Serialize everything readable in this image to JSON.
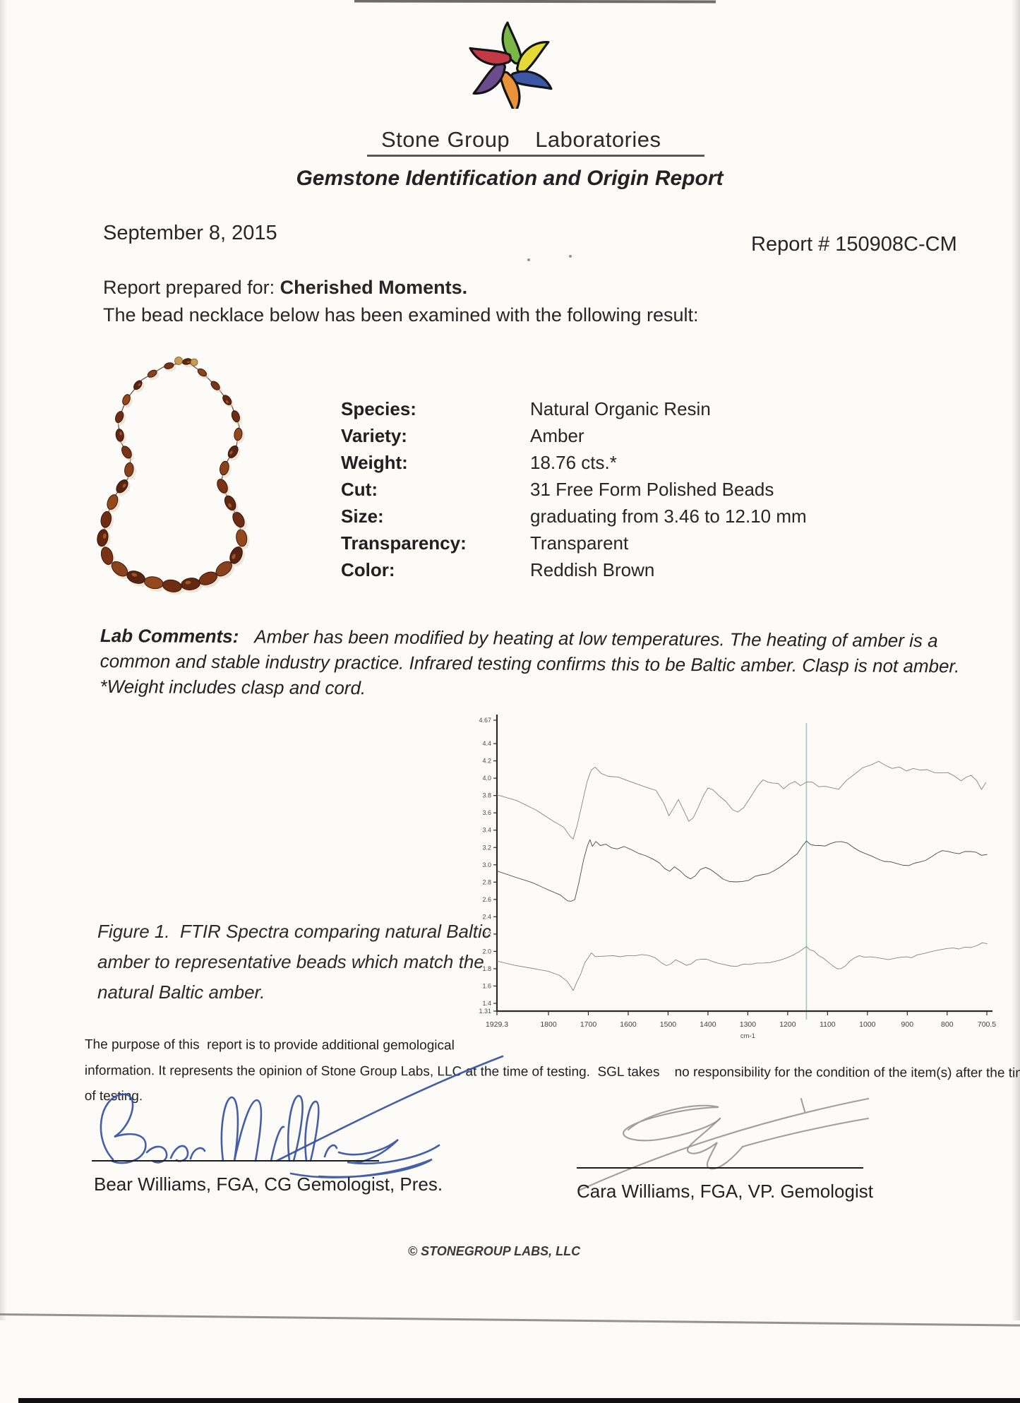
{
  "header": {
    "brand": {
      "word1": "Stone",
      "word2": "Group",
      "word3": "Laboratories"
    },
    "title": "Gemstone Identification and Origin Report"
  },
  "meta": {
    "date": "September 8, 2015",
    "report_number": "Report # 150908C-CM"
  },
  "intro": {
    "prepared_label": "Report prepared for: ",
    "client": "Cherished Moments.",
    "line2": "The bead necklace below has been examined with the following result:"
  },
  "specimen": {
    "fields": [
      {
        "label": "Species:",
        "value": "Natural Organic Resin"
      },
      {
        "label": "Variety:",
        "value": "Amber"
      },
      {
        "label": "Weight:",
        "value": "18.76 cts.*"
      },
      {
        "label": "Cut:",
        "value": "31 Free Form Polished Beads"
      },
      {
        "label": "Size:",
        "value": "graduating from 3.46 to 12.10 mm"
      },
      {
        "label": "Transparency:",
        "value": "Transparent"
      },
      {
        "label": "Color:",
        "value": "Reddish Brown"
      }
    ],
    "bead_colors": [
      "#63260f",
      "#7a3315",
      "#8a421d",
      "#5a2210",
      "#93491c",
      "#6f2c12"
    ],
    "clasp_color": "#c89b52"
  },
  "lab_comments": {
    "label": "Lab Comments:",
    "line1": "Amber has been modified by heating at low temperatures. The heating of amber is a",
    "line2": "common and stable industry practice. Infrared testing confirms this to be Baltic amber. Clasp is not amber.",
    "line3": "*Weight includes clasp and cord."
  },
  "figure": {
    "caption_lines": [
      "Figure 1.  FTIR Spectra comparing natural Baltic",
      "amber to representative beads which match the",
      "natural Baltic amber."
    ]
  },
  "chart_data": {
    "type": "line",
    "title": "",
    "xlabel": "cm-1",
    "ylabel": "",
    "x_range": [
      1929.3,
      700.5
    ],
    "y_range": [
      1.31,
      4.67
    ],
    "x_ticks": [
      "1929.3",
      "1800",
      "1700",
      "1600",
      "1500",
      "1400",
      "1300",
      "1200",
      "1100",
      "1000",
      "900",
      "800",
      "700.5"
    ],
    "y_ticks": [
      "4.67",
      "4.4",
      "4.2",
      "4.0",
      "3.8",
      "3.6",
      "3.4",
      "3.2",
      "3.0",
      "2.8",
      "2.6",
      "2.4",
      "2.2",
      "2.0",
      "1.8",
      "1.6",
      "1.4",
      "1.31"
    ],
    "grid": false,
    "legend": null,
    "reference_line_x": 1153,
    "reference_line_color": "#9fbdb8",
    "axis_color": "#2b2b2b",
    "series": [
      {
        "name": "trace-top",
        "color": "#85857f",
        "points": [
          [
            1929,
            3.8
          ],
          [
            1880,
            3.73
          ],
          [
            1830,
            3.63
          ],
          [
            1790,
            3.52
          ],
          [
            1762,
            3.42
          ],
          [
            1746,
            3.33
          ],
          [
            1738,
            3.31
          ],
          [
            1728,
            3.45
          ],
          [
            1715,
            3.72
          ],
          [
            1703,
            3.96
          ],
          [
            1693,
            4.09
          ],
          [
            1683,
            4.14
          ],
          [
            1668,
            4.07
          ],
          [
            1650,
            4.03
          ],
          [
            1625,
            4.0
          ],
          [
            1600,
            3.97
          ],
          [
            1575,
            3.93
          ],
          [
            1550,
            3.9
          ],
          [
            1530,
            3.86
          ],
          [
            1510,
            3.7
          ],
          [
            1498,
            3.58
          ],
          [
            1486,
            3.66
          ],
          [
            1474,
            3.74
          ],
          [
            1460,
            3.62
          ],
          [
            1448,
            3.5
          ],
          [
            1437,
            3.53
          ],
          [
            1424,
            3.67
          ],
          [
            1412,
            3.8
          ],
          [
            1400,
            3.88
          ],
          [
            1388,
            3.86
          ],
          [
            1372,
            3.8
          ],
          [
            1355,
            3.72
          ],
          [
            1338,
            3.63
          ],
          [
            1325,
            3.61
          ],
          [
            1310,
            3.67
          ],
          [
            1293,
            3.78
          ],
          [
            1276,
            3.92
          ],
          [
            1262,
            3.99
          ],
          [
            1250,
            3.96
          ],
          [
            1237,
            3.93
          ],
          [
            1224,
            3.95
          ],
          [
            1210,
            3.89
          ],
          [
            1196,
            3.93
          ],
          [
            1182,
            3.95
          ],
          [
            1168,
            3.91
          ],
          [
            1153,
            3.95
          ],
          [
            1138,
            3.95
          ],
          [
            1122,
            3.9
          ],
          [
            1106,
            3.92
          ],
          [
            1090,
            3.89
          ],
          [
            1072,
            3.88
          ],
          [
            1052,
            3.97
          ],
          [
            1032,
            4.05
          ],
          [
            1012,
            4.11
          ],
          [
            992,
            4.16
          ],
          [
            972,
            4.2
          ],
          [
            955,
            4.16
          ],
          [
            938,
            4.11
          ],
          [
            920,
            4.13
          ],
          [
            902,
            4.09
          ],
          [
            885,
            4.12
          ],
          [
            868,
            4.09
          ],
          [
            850,
            4.1
          ],
          [
            832,
            4.07
          ],
          [
            815,
            4.06
          ],
          [
            798,
            4.06
          ],
          [
            780,
            4.02
          ],
          [
            765,
            3.97
          ],
          [
            752,
            4.02
          ],
          [
            740,
            4.04
          ],
          [
            726,
            3.97
          ],
          [
            714,
            3.88
          ],
          [
            703,
            3.96
          ]
        ]
      },
      {
        "name": "trace-middle",
        "color": "#4a4a46",
        "points": [
          [
            1929,
            2.92
          ],
          [
            1885,
            2.86
          ],
          [
            1840,
            2.79
          ],
          [
            1800,
            2.71
          ],
          [
            1770,
            2.65
          ],
          [
            1752,
            2.59
          ],
          [
            1743,
            2.57
          ],
          [
            1734,
            2.61
          ],
          [
            1724,
            2.79
          ],
          [
            1712,
            3.06
          ],
          [
            1702,
            3.23
          ],
          [
            1696,
            3.28
          ],
          [
            1690,
            3.22
          ],
          [
            1681,
            3.26
          ],
          [
            1670,
            3.22
          ],
          [
            1656,
            3.24
          ],
          [
            1642,
            3.2
          ],
          [
            1628,
            3.18
          ],
          [
            1610,
            3.2
          ],
          [
            1592,
            3.16
          ],
          [
            1574,
            3.12
          ],
          [
            1556,
            3.1
          ],
          [
            1538,
            3.07
          ],
          [
            1522,
            3.01
          ],
          [
            1508,
            2.95
          ],
          [
            1496,
            2.92
          ],
          [
            1484,
            2.98
          ],
          [
            1470,
            2.92
          ],
          [
            1456,
            2.86
          ],
          [
            1444,
            2.83
          ],
          [
            1432,
            2.88
          ],
          [
            1419,
            2.94
          ],
          [
            1406,
            2.97
          ],
          [
            1393,
            2.94
          ],
          [
            1378,
            2.89
          ],
          [
            1362,
            2.84
          ],
          [
            1346,
            2.82
          ],
          [
            1330,
            2.8
          ],
          [
            1314,
            2.81
          ],
          [
            1298,
            2.83
          ],
          [
            1282,
            2.86
          ],
          [
            1266,
            2.88
          ],
          [
            1250,
            2.9
          ],
          [
            1235,
            2.93
          ],
          [
            1220,
            2.97
          ],
          [
            1205,
            3.02
          ],
          [
            1190,
            3.08
          ],
          [
            1176,
            3.14
          ],
          [
            1163,
            3.21
          ],
          [
            1153,
            3.27
          ],
          [
            1143,
            3.25
          ],
          [
            1131,
            3.22
          ],
          [
            1119,
            3.21
          ],
          [
            1106,
            3.23
          ],
          [
            1093,
            3.24
          ],
          [
            1079,
            3.26
          ],
          [
            1065,
            3.27
          ],
          [
            1050,
            3.25
          ],
          [
            1035,
            3.2
          ],
          [
            1020,
            3.16
          ],
          [
            1005,
            3.13
          ],
          [
            990,
            3.1
          ],
          [
            974,
            3.07
          ],
          [
            958,
            3.05
          ],
          [
            942,
            3.03
          ],
          [
            926,
            3.01
          ],
          [
            910,
            3.0
          ],
          [
            896,
            2.99
          ],
          [
            882,
            3.01
          ],
          [
            868,
            3.03
          ],
          [
            854,
            3.06
          ],
          [
            840,
            3.1
          ],
          [
            826,
            3.13
          ],
          [
            812,
            3.15
          ],
          [
            798,
            3.15
          ],
          [
            784,
            3.15
          ],
          [
            770,
            3.14
          ],
          [
            756,
            3.15
          ],
          [
            742,
            3.14
          ],
          [
            728,
            3.14
          ],
          [
            714,
            3.12
          ],
          [
            700,
            3.13
          ]
        ]
      },
      {
        "name": "trace-bottom",
        "color": "#85857f",
        "points": [
          [
            1929,
            1.88
          ],
          [
            1885,
            1.84
          ],
          [
            1840,
            1.8
          ],
          [
            1800,
            1.77
          ],
          [
            1772,
            1.73
          ],
          [
            1754,
            1.66
          ],
          [
            1744,
            1.58
          ],
          [
            1738,
            1.56
          ],
          [
            1729,
            1.63
          ],
          [
            1719,
            1.75
          ],
          [
            1709,
            1.87
          ],
          [
            1700,
            1.93
          ],
          [
            1692,
            1.97
          ],
          [
            1683,
            1.95
          ],
          [
            1670,
            1.94
          ],
          [
            1654,
            1.95
          ],
          [
            1638,
            1.96
          ],
          [
            1620,
            1.95
          ],
          [
            1602,
            1.96
          ],
          [
            1584,
            1.95
          ],
          [
            1566,
            1.96
          ],
          [
            1548,
            1.95
          ],
          [
            1532,
            1.93
          ],
          [
            1516,
            1.88
          ],
          [
            1504,
            1.83
          ],
          [
            1494,
            1.86
          ],
          [
            1481,
            1.9
          ],
          [
            1467,
            1.87
          ],
          [
            1454,
            1.84
          ],
          [
            1442,
            1.86
          ],
          [
            1429,
            1.9
          ],
          [
            1416,
            1.92
          ],
          [
            1403,
            1.9
          ],
          [
            1389,
            1.87
          ],
          [
            1374,
            1.85
          ],
          [
            1359,
            1.84
          ],
          [
            1344,
            1.83
          ],
          [
            1328,
            1.84
          ],
          [
            1311,
            1.85
          ],
          [
            1294,
            1.86
          ],
          [
            1277,
            1.87
          ],
          [
            1261,
            1.88
          ],
          [
            1246,
            1.88
          ],
          [
            1231,
            1.89
          ],
          [
            1216,
            1.9
          ],
          [
            1201,
            1.92
          ],
          [
            1187,
            1.96
          ],
          [
            1173,
            2.0
          ],
          [
            1161,
            2.04
          ],
          [
            1153,
            2.05
          ],
          [
            1144,
            2.02
          ],
          [
            1134,
            1.99
          ],
          [
            1123,
            1.95
          ],
          [
            1111,
            1.92
          ],
          [
            1099,
            1.88
          ],
          [
            1087,
            1.84
          ],
          [
            1076,
            1.81
          ],
          [
            1066,
            1.8
          ],
          [
            1055,
            1.84
          ],
          [
            1044,
            1.89
          ],
          [
            1032,
            1.93
          ],
          [
            1020,
            1.95
          ],
          [
            1007,
            1.94
          ],
          [
            993,
            1.93
          ],
          [
            978,
            1.92
          ],
          [
            963,
            1.91
          ],
          [
            948,
            1.9
          ],
          [
            933,
            1.92
          ],
          [
            918,
            1.94
          ],
          [
            903,
            1.95
          ],
          [
            889,
            1.93
          ],
          [
            875,
            1.95
          ],
          [
            860,
            1.96
          ],
          [
            845,
            1.98
          ],
          [
            830,
            2.0
          ],
          [
            815,
            2.02
          ],
          [
            800,
            2.04
          ],
          [
            785,
            2.05
          ],
          [
            770,
            2.04
          ],
          [
            755,
            2.06
          ],
          [
            740,
            2.05
          ],
          [
            725,
            2.07
          ],
          [
            712,
            2.09
          ],
          [
            700,
            2.1
          ]
        ]
      }
    ]
  },
  "purpose": {
    "lines": [
      "The purpose of this  report is to provide additional gemological",
      "information. It represents the opinion of Stone Group Labs, LLC at the time of testing.  SGL takes    no responsibility for the condition of the item(s) after the time",
      "of testing."
    ]
  },
  "signatures": [
    {
      "name": "Bear Williams, FGA, CG Gemologist, Pres.",
      "ink_color": "#34509f"
    },
    {
      "name": "Cara Williams, FGA, VP. Gemologist",
      "ink_color": "#8f8f8b"
    }
  ],
  "footer": {
    "copyright": "© STONEGROUP LABS, LLC"
  },
  "colors": {
    "paper": "#fcfbf8",
    "text": "#2b2b2b",
    "logo_petals": [
      "#7ab648",
      "#e3da35",
      "#3c56a5",
      "#e8923a",
      "#6a4b8e",
      "#c43a44"
    ]
  }
}
